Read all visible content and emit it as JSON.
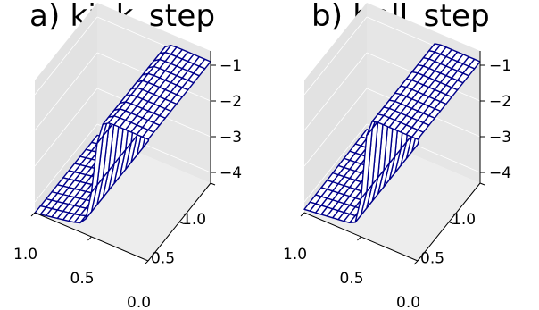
{
  "chart_data": [
    {
      "type": "surface",
      "title": "a) kink_step",
      "style": "wireframe",
      "line_color": "#00008b",
      "background": "#e6e6e6",
      "x_ticks": [
        "1.0",
        "0.5",
        "0.0"
      ],
      "y_ticks": [
        "0.5",
        "1.0"
      ],
      "z_ticks": [
        "−1",
        "−2",
        "−3",
        "−4"
      ],
      "xlim": [
        0.0,
        1.0
      ],
      "ylim": [
        0.0,
        1.0
      ],
      "zlim": [
        -4.3,
        -0.6
      ],
      "grid": {
        "nx": 21,
        "ny": 12
      },
      "surface": {
        "high": -0.9,
        "low": -4.0,
        "step_at_x": 0.48,
        "kink": true
      }
    },
    {
      "type": "surface",
      "title": "b) ball_step",
      "style": "wireframe",
      "line_color": "#00008b",
      "background": "#e6e6e6",
      "x_ticks": [
        "1.0",
        "0.5",
        "0.0"
      ],
      "y_ticks": [
        "0.5",
        "1.0"
      ],
      "z_ticks": [
        "−1",
        "−2",
        "−3",
        "−4"
      ],
      "xlim": [
        0.0,
        1.0
      ],
      "ylim": [
        0.0,
        1.0
      ],
      "zlim": [
        -4.3,
        -0.6
      ],
      "grid": {
        "nx": 21,
        "ny": 12
      },
      "surface": {
        "high": -0.9,
        "low": -4.0,
        "step_at_x": 0.48,
        "kink": false
      }
    }
  ]
}
